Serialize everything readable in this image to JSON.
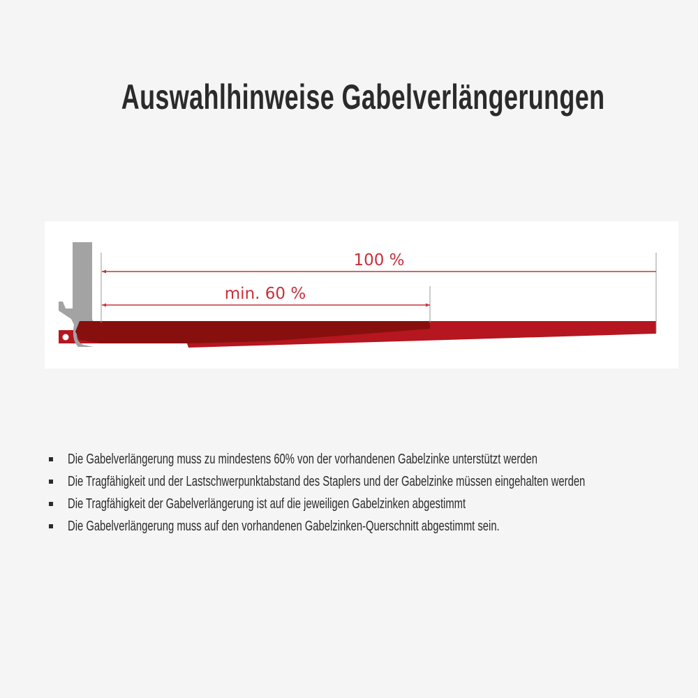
{
  "title": "Auswahlhinweise Gabelverlängerungen",
  "diagram": {
    "label_full": "100 %",
    "label_min": "min. 60 %",
    "colors": {
      "fork_extension": "#b5161f",
      "fork_tine_overlap": "#87100f",
      "mast": "#a3a3a3",
      "dimension_line": "#c9303a"
    }
  },
  "bullets": [
    "Die Gabelverlängerung muss zu mindestens 60% von der vorhandenen Gabelzinke unterstützt werden",
    "Die Tragfähigkeit und der Lastschwerpunktabstand des Staplers und der Gabelzinke müssen eingehalten werden",
    "Die Tragfähigkeit der Gabelverlängerung ist auf die jeweiligen Gabelzinken abgestimmt",
    "Die Gabelverlängerung muss auf den vorhandenen Gabelzinken-Querschnitt abgestimmt sein."
  ]
}
